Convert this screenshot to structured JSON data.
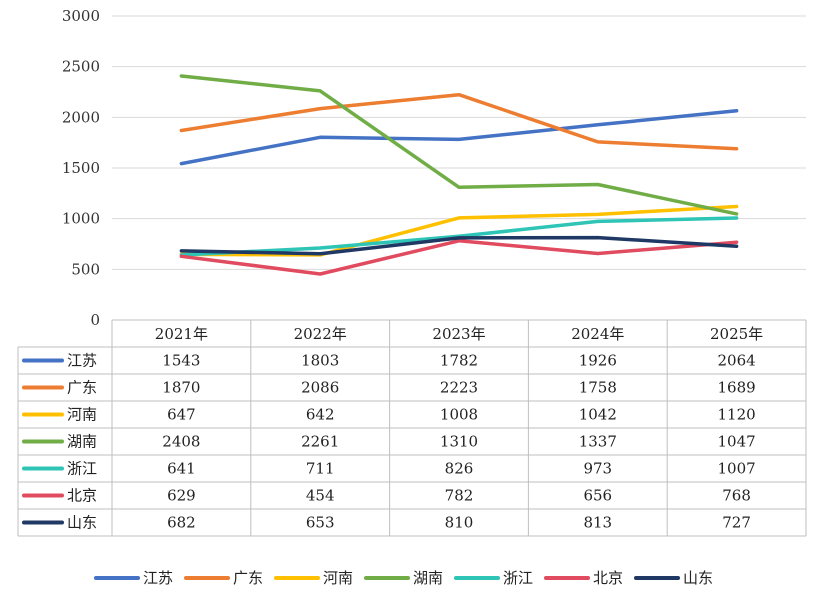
{
  "chart_data": {
    "type": "line",
    "title": "",
    "xlabel": "",
    "ylabel": "",
    "ylim": [
      0,
      3000
    ],
    "yticks": [
      0,
      500,
      1000,
      1500,
      2000,
      2500,
      3000
    ],
    "grid": true,
    "legend": "bottom",
    "data_table": true,
    "categories": [
      "2021年",
      "2022年",
      "2023年",
      "2024年",
      "2025年"
    ],
    "series": [
      {
        "name": "江苏",
        "color": "#4472C4",
        "values": [
          1543,
          1803,
          1782,
          1926,
          2064
        ]
      },
      {
        "name": "广东",
        "color": "#ED7D31",
        "values": [
          1870,
          2086,
          2223,
          1758,
          1689
        ]
      },
      {
        "name": "河南",
        "color": "#FFC000",
        "values": [
          647,
          642,
          1008,
          1042,
          1120
        ]
      },
      {
        "name": "湖南",
        "color": "#70AD47",
        "values": [
          2408,
          2261,
          1310,
          1337,
          1047
        ]
      },
      {
        "name": "浙江",
        "color": "#2EC4B6",
        "values": [
          641,
          711,
          826,
          973,
          1007
        ]
      },
      {
        "name": "北京",
        "color": "#E04B5F",
        "values": [
          629,
          454,
          782,
          656,
          768
        ]
      },
      {
        "name": "山东",
        "color": "#1F3864",
        "values": [
          682,
          653,
          810,
          813,
          727
        ]
      }
    ]
  }
}
